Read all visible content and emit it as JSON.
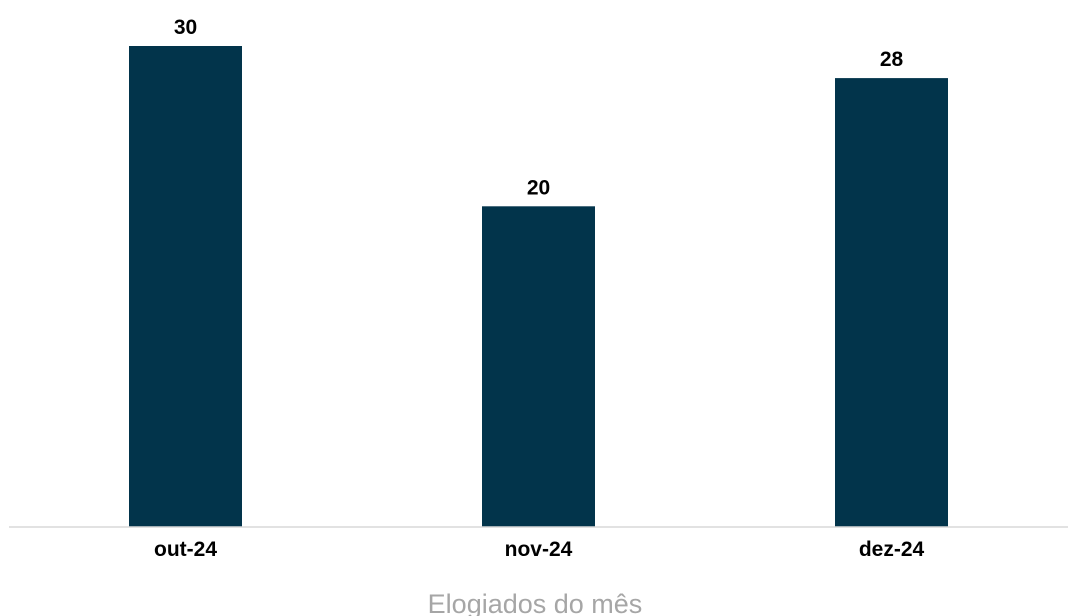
{
  "chart_data": {
    "type": "bar",
    "categories": [
      "out-24",
      "nov-24",
      "dez-24"
    ],
    "values": [
      30,
      20,
      28
    ],
    "title": "",
    "xlabel": "Elogiados do mês",
    "ylabel": "",
    "ylim": [
      0,
      30
    ],
    "grid": false,
    "legend": "none",
    "bar_color": "#02344b",
    "axis_color": "#d9d9d9"
  }
}
